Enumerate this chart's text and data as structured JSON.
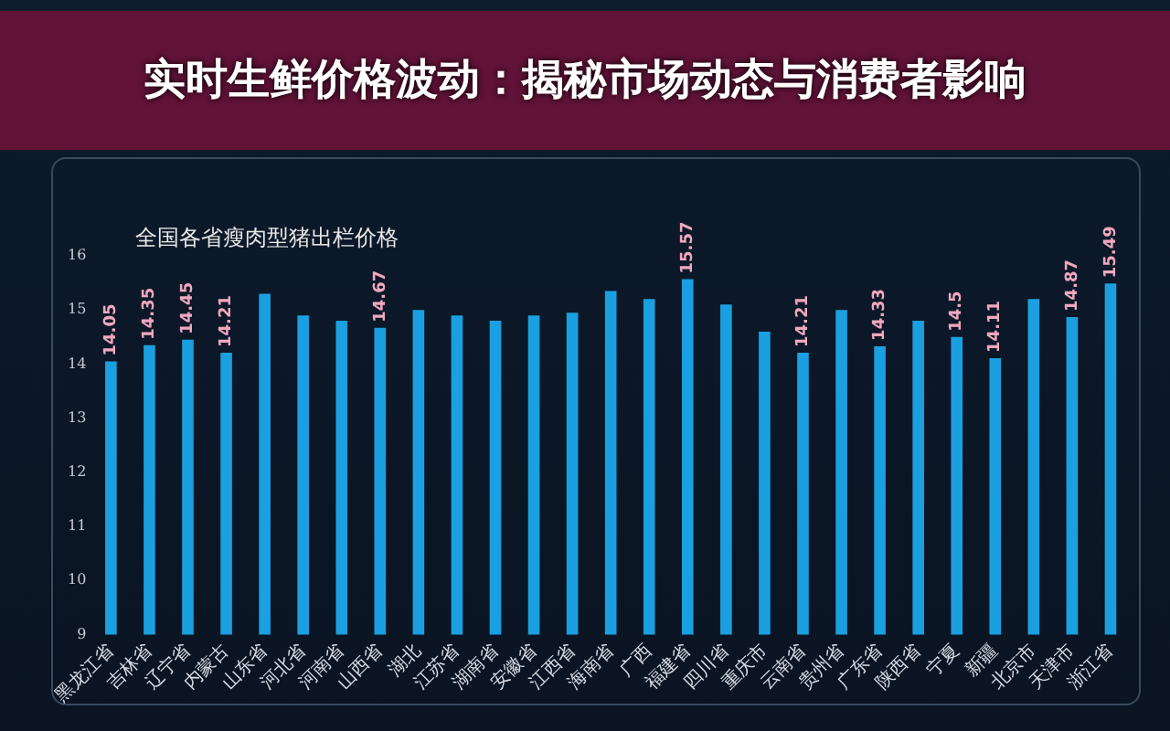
{
  "chart_data": {
    "type": "bar",
    "title": "全国各省瘦肉型猪出栏价格",
    "categories": [
      "黑龙江省",
      "吉林省",
      "辽宁省",
      "内蒙古",
      "山东省",
      "河北省",
      "河南省",
      "山西省",
      "湖北",
      "江苏省",
      "湖南省",
      "安徽省",
      "江西省",
      "海南省",
      "广西",
      "福建省",
      "四川省",
      "重庆市",
      "云南省",
      "贵州省",
      "广东省",
      "陕西省",
      "宁夏",
      "新疆",
      "北京市",
      "天津市",
      "浙江省"
    ],
    "values": [
      14.05,
      14.35,
      14.45,
      14.21,
      15.3,
      14.9,
      14.8,
      14.67,
      15.0,
      14.9,
      14.8,
      14.9,
      14.95,
      15.35,
      15.2,
      15.57,
      15.1,
      14.6,
      14.21,
      15.0,
      14.33,
      14.8,
      14.5,
      14.11,
      15.2,
      14.87,
      15.49
    ],
    "value_labels": [
      "14.05",
      "14.35",
      "14.45",
      "14.21",
      null,
      null,
      null,
      "14.67",
      null,
      null,
      null,
      null,
      null,
      null,
      null,
      "15.57",
      null,
      null,
      "14.21",
      null,
      "14.33",
      null,
      "14.5",
      "14.11",
      null,
      "14.87",
      "15.49"
    ],
    "color": "#1aa0e0",
    "ylim": [
      9,
      16
    ],
    "yticks": [
      9,
      10,
      11,
      12,
      13,
      14,
      15,
      16
    ],
    "grid": false,
    "legend": false,
    "annotations": [
      "实时生鲜价格波动：揭秘市场动态与消费者影响"
    ]
  }
}
